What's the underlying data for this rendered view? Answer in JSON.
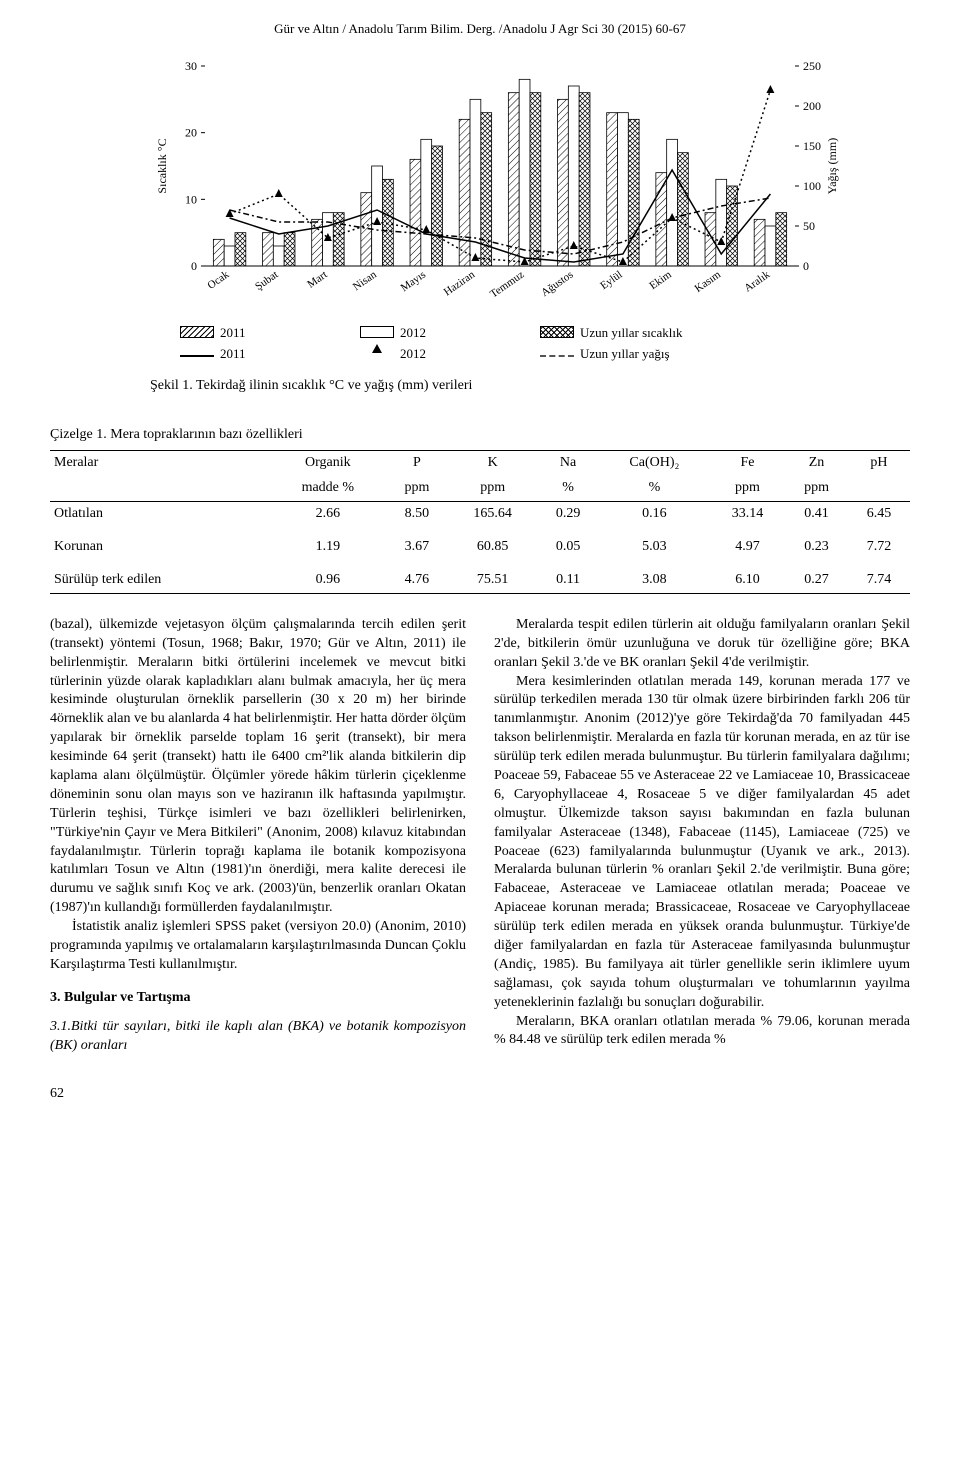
{
  "header": {
    "running": "Gür ve Altın / Anadolu Tarım Bilim. Derg. /Anadolu J Agr Sci 30 (2015) 60-67"
  },
  "chart": {
    "type": "combo-bar-line",
    "months": [
      "Ocak",
      "Şubat",
      "Mart",
      "Nisan",
      "Mayıs",
      "Haziran",
      "Temmuz",
      "Ağustos",
      "Eylül",
      "Ekim",
      "Kasım",
      "Aralık"
    ],
    "left_axis": {
      "label": "Sıcaklık °C",
      "lim": [
        0,
        30
      ],
      "ticks": [
        0,
        10,
        20,
        30
      ],
      "fontsize": 12
    },
    "right_axis": {
      "label": "Yağış (mm)",
      "lim": [
        0,
        250
      ],
      "ticks": [
        0,
        50,
        100,
        150,
        200,
        250
      ],
      "fontsize": 12
    },
    "temp_bars": {
      "2011": [
        4,
        5,
        7,
        11,
        16,
        22,
        26,
        25,
        23,
        14,
        8,
        7
      ],
      "2012": [
        3,
        3,
        8,
        15,
        19,
        25,
        28,
        27,
        23,
        19,
        13,
        6
      ],
      "uzun": [
        5,
        5,
        8,
        13,
        18,
        23,
        26,
        26,
        22,
        17,
        12,
        8
      ]
    },
    "rain_lines": {
      "2011": [
        60,
        40,
        50,
        70,
        40,
        30,
        10,
        5,
        15,
        120,
        15,
        90
      ],
      "2012": [
        65,
        90,
        35,
        55,
        45,
        10,
        5,
        25,
        5,
        60,
        30,
        220
      ],
      "uzun": [
        70,
        55,
        55,
        45,
        40,
        35,
        20,
        15,
        30,
        60,
        75,
        85
      ]
    },
    "bar_fill": {
      "2011": "hatch135",
      "2012": "blank",
      "uzun": "cross"
    },
    "line_style": {
      "2011": "solid",
      "2012": "dot-marker",
      "uzun": "dashdot"
    },
    "marker": "triangle",
    "colors": {
      "stroke": "#000000",
      "bg": "#ffffff",
      "grid": "#d0d0d0"
    },
    "legend": {
      "r1": [
        "2011",
        "2012",
        "Uzun yıllar sıcaklık"
      ],
      "r2": [
        "2011",
        "2012",
        "Uzun yıllar yağış"
      ]
    },
    "caption": "Şekil 1. Tekirdağ ilinin sıcaklık °C ve yağış (mm) verileri"
  },
  "table": {
    "caption": "Çizelge 1. Mera topraklarının bazı özellikleri",
    "columns": [
      {
        "h1": "Meralar",
        "h2": ""
      },
      {
        "h1": "Organik",
        "h2": "madde %"
      },
      {
        "h1": "P",
        "h2": "ppm"
      },
      {
        "h1": "K",
        "h2": "ppm"
      },
      {
        "h1": "Na",
        "h2": "%"
      },
      {
        "h1": "Ca(OH)₂",
        "h2": "%"
      },
      {
        "h1": "Fe",
        "h2": "ppm"
      },
      {
        "h1": "Zn",
        "h2": "ppm"
      },
      {
        "h1": "pH",
        "h2": ""
      }
    ],
    "rows": [
      [
        "Otlatılan",
        "2.66",
        "8.50",
        "165.64",
        "0.29",
        "0.16",
        "33.14",
        "0.41",
        "6.45"
      ],
      [
        "Korunan",
        "1.19",
        "3.67",
        "60.85",
        "0.05",
        "5.03",
        "4.97",
        "0.23",
        "7.72"
      ],
      [
        "Sürülüp terk edilen",
        "0.96",
        "4.76",
        "75.51",
        "0.11",
        "3.08",
        "6.10",
        "0.27",
        "7.74"
      ]
    ]
  },
  "body": {
    "left": {
      "p1": "(bazal), ülkemizde vejetasyon ölçüm çalışmalarında tercih edilen şerit (transekt) yöntemi (Tosun, 1968; Bakır, 1970; Gür ve Altın, 2011) ile belirlenmiştir. Meraların bitki örtülerini incelemek ve mevcut bitki türlerinin yüzde olarak kapladıkları alanı bulmak amacıyla, her üç mera kesiminde oluşturulan örneklik parsellerin (30 x 20 m) her birinde 4örneklik alan ve bu alanlarda 4 hat belirlenmiştir. Her hatta dörder ölçüm yapılarak bir örneklik parselde toplam 16 şerit (transekt), bir mera kesiminde 64 şerit (transekt) hattı ile 6400 cm²'lik alanda bitkilerin dip kaplama alanı ölçülmüştür. Ölçümler yörede hâkim türlerin çiçeklenme döneminin sonu olan mayıs son ve haziranın ilk haftasında yapılmıştır. Türlerin teşhisi, Türkçe isimleri ve bazı özellikleri belirlenirken, \"Türkiye'nin Çayır ve Mera Bitkileri\" (Anonim, 2008) kılavuz kitabından faydalanılmıştır. Türlerin toprağı kaplama ile botanik kompozisyona katılımları Tosun ve Altın (1981)'ın önerdiği, mera kalite derecesi ile durumu ve sağlık sınıfı Koç ve ark. (2003)'ün, benzerlik oranları Okatan (1987)'ın kullandığı formüllerden faydalanılmıştır.",
      "p2": "İstatistik analiz işlemleri SPSS paket (versiyon 20.0) (Anonim, 2010) programında yapılmış ve ortalamaların karşılaştırılmasında Duncan Çoklu Karşılaştırma Testi kullanılmıştır.",
      "h3": "3. Bulgular ve Tartışma",
      "h31": "3.1.Bitki tür sayıları, bitki ile kaplı alan (BKA) ve botanik kompozisyon (BK) oranları"
    },
    "right": {
      "p1": "Meralarda tespit edilen türlerin ait olduğu familyaların oranları Şekil 2'de, bitkilerin ömür uzunluğuna ve doruk tür özelliğine göre; BKA oranları Şekil 3.'de ve BK oranları Şekil 4'de verilmiştir.",
      "p2": "Mera kesimlerinden otlatılan merada 149, korunan merada 177 ve sürülüp terkedilen merada 130 tür olmak üzere birbirinden farklı 206 tür tanımlanmıştır. Anonim (2012)'ye göre Tekirdağ'da 70 familyadan 445 takson belirlenmiştir. Meralarda en fazla tür korunan merada, en az tür ise sürülüp terk edilen merada bulunmuştur. Bu türlerin familyalara dağılımı; Poaceae 59, Fabaceae 55 ve Asteraceae 22 ve Lamiaceae 10, Brassicaceae 6, Caryophyllaceae 4, Rosaceae 5 ve diğer familyalardan 45 adet olmuştur. Ülkemizde takson sayısı bakımından en fazla bulunan familyalar Asteraceae (1348), Fabaceae (1145), Lamiaceae (725) ve Poaceae (623) familyalarında bulunmuştur (Uyanık ve ark., 2013). Meralarda bulunan türlerin % oranları Şekil 2.'de verilmiştir. Buna göre; Fabaceae, Asteraceae ve Lamiaceae otlatılan merada; Poaceae ve Apiaceae korunan merada; Brassicaceae, Rosaceae ve Caryophyllaceae sürülüp terk edilen merada en yüksek oranda bulunmuştur. Türkiye'de diğer familyalardan en fazla tür Asteraceae familyasında bulunmuştur (Andiç, 1985). Bu familyaya ait türler genellikle serin iklimlere uyum sağlaması, çok sayıda tohum oluşturmaları ve tohumlarının yayılma yeteneklerinin fazlalığı bu sonuçları doğurabilir.",
      "p3": "Meraların, BKA oranları otlatılan merada % 79.06, korunan merada % 84.48 ve sürülüp terk edilen merada %"
    }
  },
  "pagenum": "62"
}
